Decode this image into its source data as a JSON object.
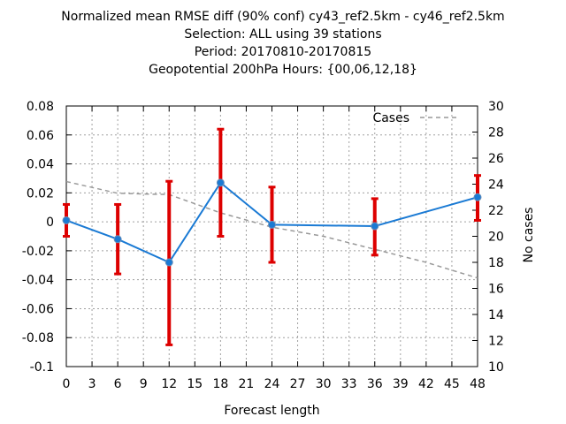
{
  "titles": [
    "Normalized mean RMSE diff (90% conf) cy43_ref2.5km - cy46_ref2.5km",
    "Selection: ALL using    39 stations",
    "Period: 20170810-20170815",
    "Geopotential 200hPa   Hours: {00,06,12,18}"
  ],
  "chart_data": {
    "type": "line",
    "xlabel": "Forecast length",
    "ylabel": "",
    "y2label": "No cases",
    "xlim": [
      0,
      48
    ],
    "xticks": [
      0,
      3,
      6,
      9,
      12,
      15,
      18,
      21,
      24,
      27,
      30,
      33,
      36,
      39,
      42,
      45,
      48
    ],
    "ylim": [
      -0.1,
      0.08
    ],
    "yticks": [
      -0.1,
      -0.08,
      -0.06,
      -0.04,
      -0.02,
      0,
      0.02,
      0.04,
      0.06,
      0.08
    ],
    "ytick_labels": [
      "-0.1",
      "-0.08",
      "-0.06",
      "-0.04",
      "-0.02",
      "0",
      "0.02",
      "0.04",
      "0.06",
      "0.08"
    ],
    "y2lim": [
      10,
      30
    ],
    "y2ticks": [
      10,
      12,
      14,
      16,
      18,
      20,
      22,
      24,
      26,
      28,
      30
    ],
    "grid": true,
    "legend_position": "top-right",
    "series": [
      {
        "x": [
          0,
          6,
          12,
          18,
          24,
          36,
          48
        ],
        "values": [
          0.001,
          -0.012,
          -0.028,
          0.027,
          -0.002,
          -0.003,
          0.017
        ],
        "err_low": [
          -0.01,
          -0.036,
          -0.085,
          -0.01,
          -0.028,
          -0.023,
          0.001
        ],
        "err_high": [
          0.012,
          0.012,
          0.028,
          0.064,
          0.024,
          0.016,
          0.032
        ],
        "color": "#1a7ad4",
        "error_color": "#dd0000"
      },
      {
        "name": "Cases",
        "axis": "y2",
        "style": "dashed",
        "x": [
          0,
          6,
          12,
          18,
          24,
          30,
          36,
          42,
          48
        ],
        "values": [
          24.2,
          23.3,
          23.2,
          21.8,
          20.7,
          20.0,
          19.0,
          18.0,
          16.8
        ],
        "color": "#999999"
      }
    ]
  }
}
